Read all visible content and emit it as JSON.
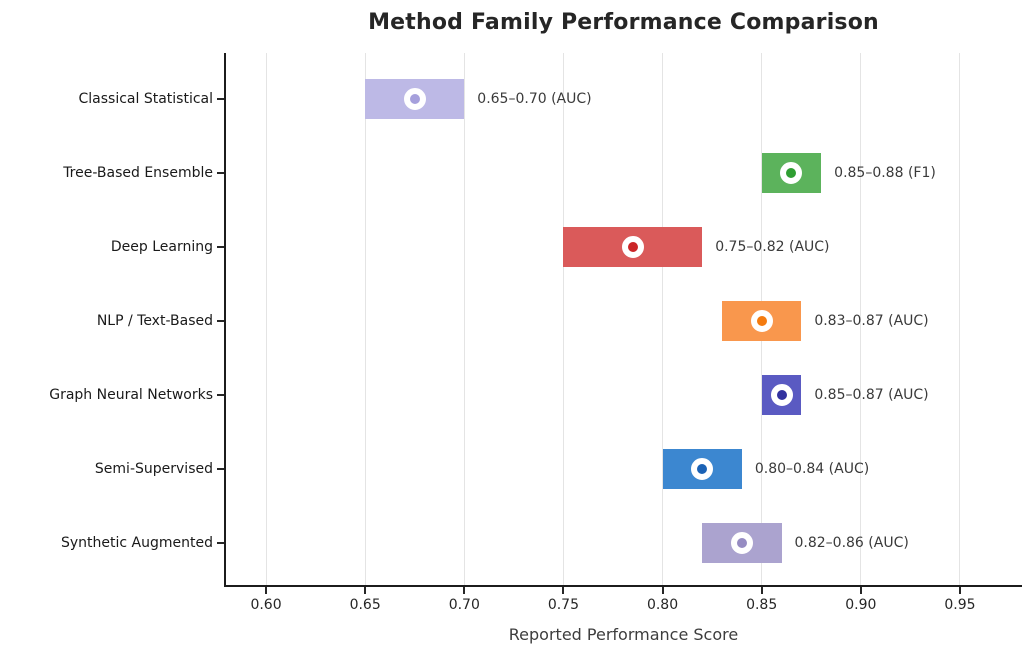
{
  "title": "Method Family Performance Comparison",
  "chart_data": {
    "type": "bar",
    "orientation": "horizontal-range",
    "title": "Method Family Performance Comparison",
    "xlabel": "Reported Performance Score",
    "ylabel": "",
    "xlim": [
      0.5793,
      0.9813
    ],
    "xtick_values": [
      0.6,
      0.65,
      0.7,
      0.75,
      0.8,
      0.85,
      0.9,
      0.95
    ],
    "xtick_labels": [
      "0.60",
      "0.65",
      "0.70",
      "0.75",
      "0.80",
      "0.85",
      "0.90",
      "0.95"
    ],
    "grid": "vertical light-gray lines, behind bars",
    "legend": "none",
    "categories": [
      "Classical Statistical",
      "Tree-Based Ensemble",
      "Deep Learning",
      "NLP / Text-Based",
      "Graph Neural Networks",
      "Semi-Supervised",
      "Synthetic Augmented"
    ],
    "rows": [
      {
        "category": "Classical Statistical",
        "low": 0.65,
        "high": 0.7,
        "mid": 0.675,
        "metric": "AUC",
        "label": "0.65–0.70 (AUC)",
        "bar_color": "#bdb9e6",
        "marker_color": "#a6a0dc"
      },
      {
        "category": "Tree-Based Ensemble",
        "low": 0.85,
        "high": 0.88,
        "mid": 0.865,
        "metric": "F1",
        "label": "0.85–0.88 (F1)",
        "bar_color": "#5cb35c",
        "marker_color": "#2f9e32"
      },
      {
        "category": "Deep Learning",
        "low": 0.75,
        "high": 0.82,
        "mid": 0.785,
        "metric": "AUC",
        "label": "0.75–0.82 (AUC)",
        "bar_color": "#da5a5a",
        "marker_color": "#cb2527"
      },
      {
        "category": "NLP / Text-Based",
        "low": 0.83,
        "high": 0.87,
        "mid": 0.85,
        "metric": "AUC",
        "label": "0.83–0.87 (AUC)",
        "bar_color": "#f9974d",
        "marker_color": "#f47b0f"
      },
      {
        "category": "Graph Neural Networks",
        "low": 0.85,
        "high": 0.87,
        "mid": 0.86,
        "metric": "AUC",
        "label": "0.85–0.87 (AUC)",
        "bar_color": "#5a5ac2",
        "marker_color": "#31319f"
      },
      {
        "category": "Semi-Supervised",
        "low": 0.8,
        "high": 0.84,
        "mid": 0.82,
        "metric": "AUC",
        "label": "0.80–0.84 (AUC)",
        "bar_color": "#3c87d0",
        "marker_color": "#1b62b5"
      },
      {
        "category": "Synthetic Augmented",
        "low": 0.82,
        "high": 0.86,
        "mid": 0.84,
        "metric": "AUC",
        "label": "0.82–0.86 (AUC)",
        "bar_color": "#aba3cf",
        "marker_color": "#968cc2"
      }
    ],
    "marker_edge_color": "#ffffff"
  },
  "colors": {
    "background": "#ffffff",
    "spine": "#1c1c1c",
    "grid": "#e4e4e4",
    "title_text": "#262626",
    "tick_text": "#262626",
    "annotation_text": "#3a3a3a",
    "xlabel_text": "#3d3d3d"
  }
}
